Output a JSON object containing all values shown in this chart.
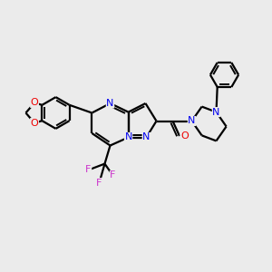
{
  "background_color": "#ebebeb",
  "bond_color": "#000000",
  "N_color": "#0000ee",
  "O_color": "#ee0000",
  "F_color": "#cc33cc",
  "lw": 1.6,
  "lw_inner": 1.4,
  "figsize": [
    3.0,
    3.0
  ],
  "dpi": 100,
  "xlim": [
    0,
    10
  ],
  "ylim": [
    0,
    10
  ],
  "font_size": 8.0
}
